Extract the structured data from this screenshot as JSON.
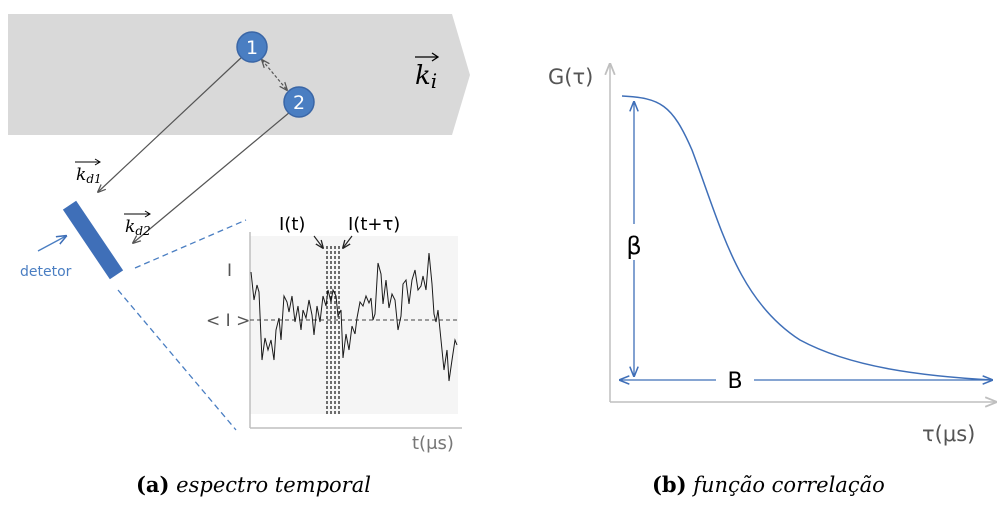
{
  "panel_a": {
    "wave_vector_incident": "k",
    "wave_vector_incident_sub": "i",
    "particle_1": "1",
    "particle_2": "2",
    "wave_vector_d1": "k",
    "wave_vector_d1_sub": "d1",
    "wave_vector_d2": "k",
    "wave_vector_d2_sub": "d2",
    "detector_label": "detetor",
    "intensity_t_label": "I(t)",
    "intensity_t_tau_label": "I(t+τ)",
    "y_label_I": "I",
    "y_label_mean": "< I >",
    "x_label": "t(μs)",
    "caption_letter": "(a)",
    "caption_text": "espectro temporal"
  },
  "panel_b": {
    "y_label": "G(τ)",
    "x_label": "τ(μs)",
    "beta_label": "β",
    "b_label": "B",
    "caption_letter": "(b)",
    "caption_text": "função correlação"
  },
  "colors": {
    "beam": "#d9d9d9",
    "particle_fill": "#4a7ec2",
    "particle_stroke": "#3a66a6",
    "detector": "#3f6fb8",
    "detector_label": "#4a7ec2",
    "curve": "#3f6fb8",
    "axis": "#bfbfbf",
    "signal": "#1a1a1a"
  }
}
